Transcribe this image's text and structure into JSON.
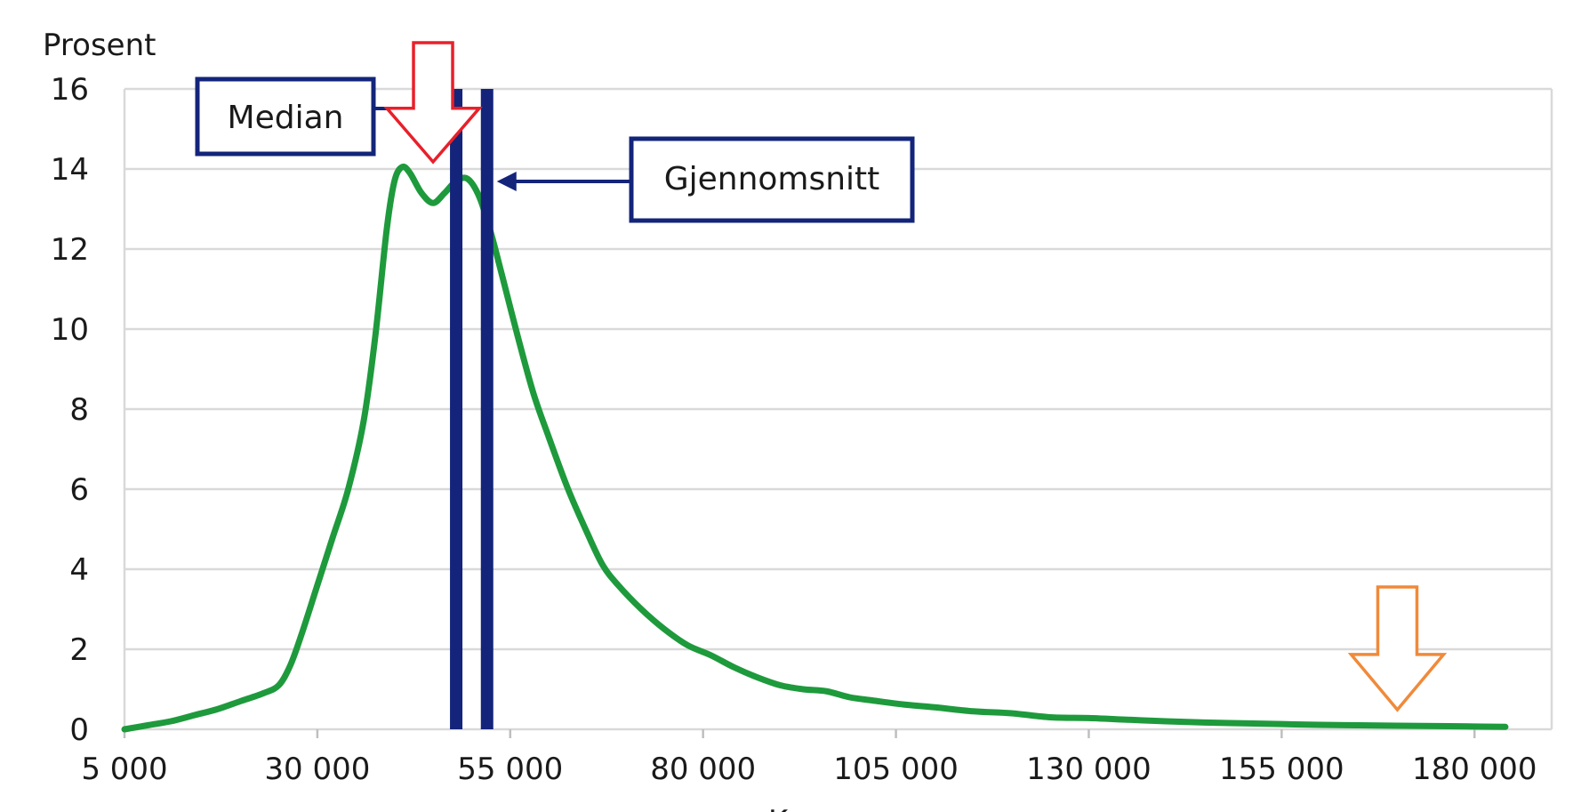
{
  "chart_data": {
    "type": "line",
    "title": "",
    "ylabel": "Prosent",
    "xlabel": "Kr",
    "xlim": [
      5000,
      190000
    ],
    "ylim": [
      0,
      16
    ],
    "grid": true,
    "x_ticks": [
      "5 000",
      "30 000",
      "55 000",
      "80 000",
      "105 000",
      "130 000",
      "155 000",
      "180 000"
    ],
    "x_tick_values": [
      5000,
      30000,
      55000,
      80000,
      105000,
      130000,
      155000,
      180000
    ],
    "y_ticks": [
      "0",
      "2",
      "4",
      "6",
      "8",
      "10",
      "12",
      "14",
      "16"
    ],
    "y_tick_values": [
      0,
      2,
      4,
      6,
      8,
      10,
      12,
      14,
      16
    ],
    "series": [
      {
        "color": "#1e9a3c",
        "points": [
          [
            5000,
            0.0
          ],
          [
            8000,
            0.1
          ],
          [
            11000,
            0.2
          ],
          [
            14000,
            0.35
          ],
          [
            17000,
            0.5
          ],
          [
            20000,
            0.7
          ],
          [
            23000,
            0.9
          ],
          [
            25000,
            1.1
          ],
          [
            26500,
            1.6
          ],
          [
            28000,
            2.4
          ],
          [
            30000,
            3.6
          ],
          [
            32000,
            4.8
          ],
          [
            34000,
            6.0
          ],
          [
            36000,
            7.7
          ],
          [
            37500,
            9.8
          ],
          [
            39000,
            12.5
          ],
          [
            40000,
            13.7
          ],
          [
            41000,
            14.05
          ],
          [
            42000,
            13.9
          ],
          [
            43500,
            13.4
          ],
          [
            45000,
            13.15
          ],
          [
            46500,
            13.4
          ],
          [
            48000,
            13.7
          ],
          [
            49500,
            13.75
          ],
          [
            51000,
            13.3
          ],
          [
            52500,
            12.4
          ],
          [
            54000,
            11.3
          ],
          [
            56000,
            9.8
          ],
          [
            58000,
            8.4
          ],
          [
            60000,
            7.3
          ],
          [
            62500,
            6.0
          ],
          [
            65000,
            4.9
          ],
          [
            67000,
            4.1
          ],
          [
            69000,
            3.6
          ],
          [
            72000,
            3.0
          ],
          [
            75000,
            2.5
          ],
          [
            78000,
            2.1
          ],
          [
            81000,
            1.85
          ],
          [
            84000,
            1.55
          ],
          [
            87000,
            1.3
          ],
          [
            90000,
            1.1
          ],
          [
            93000,
            1.0
          ],
          [
            96000,
            0.95
          ],
          [
            99000,
            0.8
          ],
          [
            102000,
            0.72
          ],
          [
            106000,
            0.62
          ],
          [
            110000,
            0.55
          ],
          [
            115000,
            0.45
          ],
          [
            120000,
            0.4
          ],
          [
            125000,
            0.3
          ],
          [
            130000,
            0.28
          ],
          [
            135000,
            0.24
          ],
          [
            140000,
            0.2
          ],
          [
            145000,
            0.17
          ],
          [
            150000,
            0.15
          ],
          [
            155000,
            0.13
          ],
          [
            160000,
            0.11
          ],
          [
            165000,
            0.1
          ],
          [
            170000,
            0.09
          ],
          [
            175000,
            0.08
          ],
          [
            180000,
            0.07
          ],
          [
            184000,
            0.06
          ]
        ]
      }
    ],
    "vertical_lines": [
      {
        "name": "median-line",
        "x": 48000,
        "color": "#13247a"
      },
      {
        "name": "mean-line",
        "x": 52000,
        "color": "#13247a"
      }
    ],
    "annotations": {
      "median_label": "Median",
      "mean_label": "Gjennomsnitt",
      "box_color": "#13247a",
      "red_arrow_color": "#e8202a",
      "orange_arrow_color": "#f08a3a",
      "red_arrow_x": 45000,
      "orange_arrow_x": 170000
    }
  }
}
